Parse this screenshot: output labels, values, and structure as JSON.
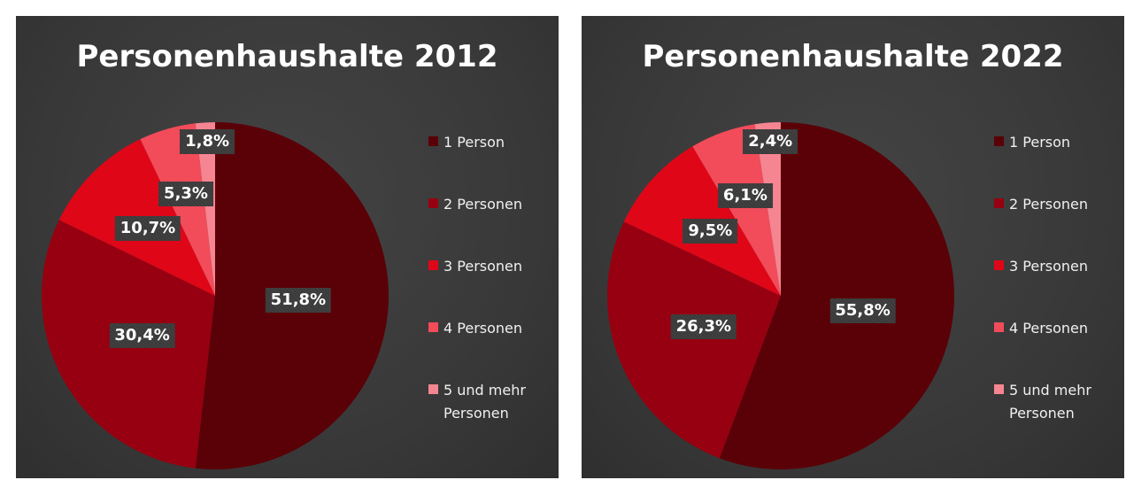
{
  "chart_data": [
    {
      "type": "pie",
      "title": "Personenhaushalte 2012",
      "categories": [
        "1 Person",
        "2 Personen",
        "3 Personen",
        "4 Personen",
        "5 und mehr Personen"
      ],
      "values": [
        51.8,
        30.4,
        10.7,
        5.3,
        1.8
      ],
      "value_labels": [
        "51,8%",
        "30,4%",
        "10,7%",
        "5,3%",
        "1,8%"
      ],
      "colors": [
        "#5a0007",
        "#960010",
        "#df0618",
        "#f24b5a",
        "#f58591"
      ],
      "legend_position": "right"
    },
    {
      "type": "pie",
      "title": "Personenhaushalte 2022",
      "categories": [
        "1 Person",
        "2 Personen",
        "3 Personen",
        "4 Personen",
        "5 und mehr Personen"
      ],
      "values": [
        55.8,
        26.3,
        9.5,
        6.1,
        2.4
      ],
      "value_labels": [
        "55,8%",
        "26,3%",
        "9,5%",
        "6,1%",
        "2,4%"
      ],
      "colors": [
        "#5a0007",
        "#960010",
        "#df0618",
        "#f24b5a",
        "#f58591"
      ],
      "legend_position": "right"
    }
  ]
}
